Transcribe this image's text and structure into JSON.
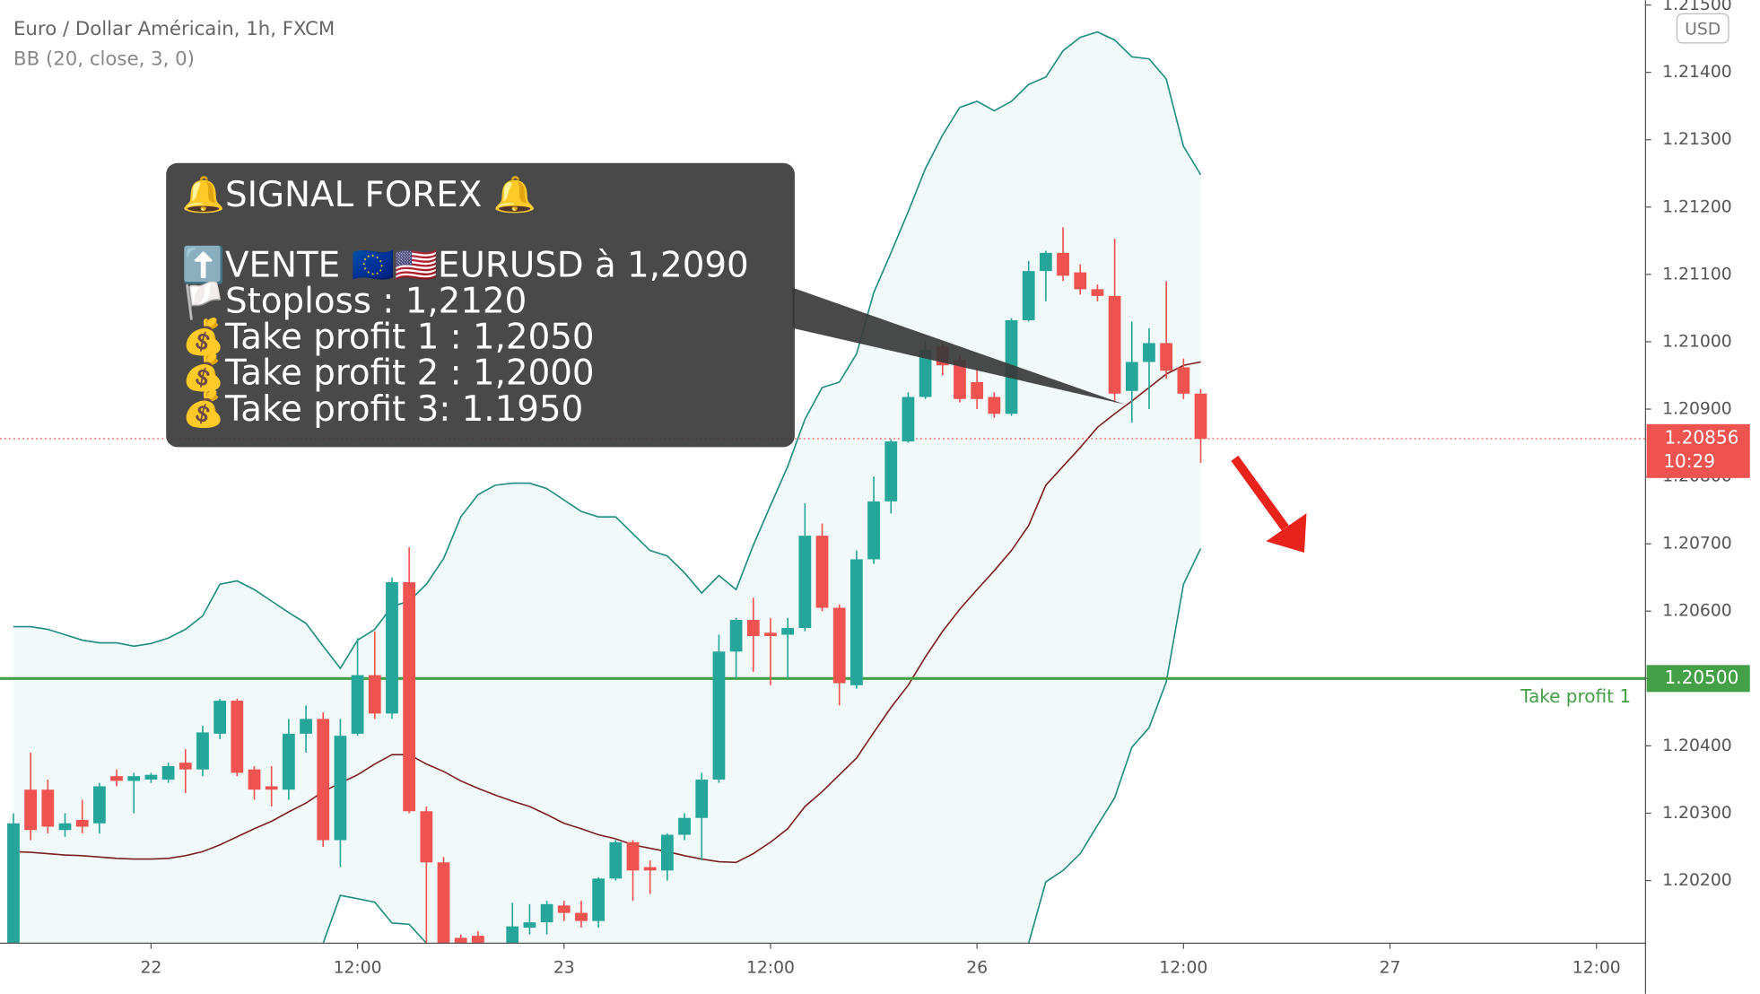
{
  "chart_data": {
    "type": "candlestick",
    "title": "Euro / Dollar Américain, 1h, FXCM",
    "currency": "USD",
    "up_color": "#26a69a",
    "down_color": "#ef5350",
    "xlim": [
      -0.78,
      94.85
    ],
    "xticks": [
      {
        "value": 8,
        "label": "22"
      },
      {
        "value": 20,
        "label": "12:00"
      },
      {
        "value": 32,
        "label": "23"
      },
      {
        "value": 44,
        "label": "12:00"
      },
      {
        "value": 56,
        "label": "26"
      },
      {
        "value": 68,
        "label": "12:00"
      },
      {
        "value": 80,
        "label": "27"
      },
      {
        "value": 92,
        "label": "12:00"
      }
    ],
    "ylim": [
      1.20107,
      1.21507
    ],
    "yticks": [
      {
        "value": 1.202,
        "label": "1.20200"
      },
      {
        "value": 1.203,
        "label": "1.20300"
      },
      {
        "value": 1.204,
        "label": "1.20400"
      },
      {
        "value": 1.205,
        "label": "1.20500"
      },
      {
        "value": 1.206,
        "label": "1.20600"
      },
      {
        "value": 1.207,
        "label": "1.20700"
      },
      {
        "value": 1.208,
        "label": "1.20800"
      },
      {
        "value": 1.209,
        "label": "1.20900"
      },
      {
        "value": 1.21,
        "label": "1.21000"
      },
      {
        "value": 1.211,
        "label": "1.21100"
      },
      {
        "value": 1.212,
        "label": "1.21200"
      },
      {
        "value": 1.213,
        "label": "1.21300"
      },
      {
        "value": 1.214,
        "label": "1.21400"
      },
      {
        "value": 1.215,
        "label": "1.21500"
      }
    ],
    "grid": false,
    "x": [
      0,
      1,
      2,
      3,
      4,
      5,
      6,
      7,
      8,
      9,
      10,
      11,
      12,
      13,
      14,
      15,
      16,
      17,
      18,
      19,
      20,
      21,
      22,
      23,
      24,
      25,
      26,
      27,
      28,
      29,
      30,
      31,
      32,
      33,
      34,
      35,
      36,
      37,
      38,
      39,
      40,
      41,
      42,
      43,
      44,
      45,
      46,
      47,
      48,
      49,
      50,
      51,
      52,
      53,
      54,
      55,
      56,
      57,
      58,
      59,
      60,
      61,
      62,
      63,
      64,
      65,
      66,
      67,
      68,
      69
    ],
    "open": [
      1.20107,
      1.20335,
      1.20335,
      1.20275,
      1.2029,
      1.20285,
      1.20355,
      1.20348,
      1.2035,
      1.2035,
      1.20375,
      1.20365,
      1.20418,
      1.20467,
      1.20365,
      1.2034,
      1.20335,
      1.20418,
      1.2044,
      1.2026,
      1.20418,
      1.20505,
      1.20448,
      1.20643,
      1.20303,
      1.20227,
      1.20115,
      1.20118,
      1.2009,
      1.20107,
      1.2013,
      1.20138,
      1.20163,
      1.20152,
      1.2014,
      1.20203,
      1.20257,
      1.2022,
      1.20215,
      1.20268,
      1.20293,
      1.2035,
      1.2054,
      1.20587,
      1.20568,
      1.20565,
      1.20575,
      1.20712,
      1.20605,
      1.2049,
      1.20677,
      1.20763,
      1.20852,
      1.20918,
      1.20993,
      1.20973,
      1.2094,
      1.20918,
      1.20893,
      1.21032,
      1.21105,
      1.21132,
      1.21103,
      1.21078,
      1.21068,
      1.20927,
      1.2097,
      1.20998,
      1.20962,
      1.20923
    ],
    "high": [
      1.203,
      1.2039,
      1.2035,
      1.203,
      1.2032,
      1.20345,
      1.20365,
      1.2036,
      1.2036,
      1.20375,
      1.20395,
      1.2043,
      1.2047,
      1.2047,
      1.2037,
      1.2037,
      1.2044,
      1.2046,
      1.2045,
      1.2044,
      1.2056,
      1.2057,
      1.2065,
      1.20695,
      1.2031,
      1.20235,
      1.2012,
      1.20125,
      1.20105,
      1.20167,
      1.20165,
      1.2017,
      1.2017,
      1.2017,
      1.20205,
      1.2026,
      1.2026,
      1.2023,
      1.2027,
      1.203,
      1.2036,
      1.20565,
      1.2059,
      1.2062,
      1.2059,
      1.2059,
      1.2076,
      1.2073,
      1.2061,
      1.2069,
      1.208,
      1.20855,
      1.20925,
      1.21,
      1.21,
      1.2098,
      1.2096,
      1.20925,
      1.21035,
      1.2112,
      1.21135,
      1.2117,
      1.21115,
      1.21085,
      1.21153,
      1.2103,
      1.2102,
      1.2109,
      1.20975,
      1.2093
    ],
    "low": [
      1.20107,
      1.2026,
      1.2027,
      1.20265,
      1.2027,
      1.2027,
      1.2034,
      1.203,
      1.20345,
      1.20345,
      1.2033,
      1.20355,
      1.2041,
      1.20355,
      1.2032,
      1.2031,
      1.2032,
      1.2039,
      1.2025,
      1.2022,
      1.20415,
      1.2044,
      1.2044,
      1.203,
      1.20107,
      1.20107,
      1.20107,
      1.2009,
      1.2008,
      1.201,
      1.2012,
      1.2012,
      1.2014,
      1.2013,
      1.2013,
      1.202,
      1.2017,
      1.2018,
      1.202,
      1.2026,
      1.2023,
      1.20345,
      1.205,
      1.2051,
      1.2049,
      1.205,
      1.2057,
      1.206,
      1.2046,
      1.20485,
      1.2067,
      1.20745,
      1.2085,
      1.20915,
      1.2095,
      1.2091,
      1.209,
      1.20887,
      1.2089,
      1.2103,
      1.2106,
      1.2109,
      1.2107,
      1.2106,
      1.2091,
      1.2088,
      1.209,
      1.20945,
      1.20915,
      1.2082
    ],
    "close": [
      1.20285,
      1.20275,
      1.2028,
      1.20285,
      1.2028,
      1.2034,
      1.20348,
      1.20355,
      1.20357,
      1.2037,
      1.20365,
      1.2042,
      1.20467,
      1.2036,
      1.20335,
      1.20335,
      1.20418,
      1.2044,
      1.2026,
      1.20415,
      1.20505,
      1.20448,
      1.20643,
      1.20303,
      1.20227,
      1.20107,
      1.20107,
      1.20107,
      1.201,
      1.20132,
      1.20138,
      1.20165,
      1.20152,
      1.2014,
      1.20203,
      1.20257,
      1.20215,
      1.20215,
      1.20268,
      1.20293,
      1.2035,
      1.2054,
      1.20587,
      1.20563,
      1.20563,
      1.20575,
      1.20712,
      1.20605,
      1.20493,
      1.20677,
      1.20763,
      1.20852,
      1.20918,
      1.20988,
      1.20965,
      1.20915,
      1.20915,
      1.20893,
      1.21032,
      1.21105,
      1.21132,
      1.21098,
      1.21078,
      1.21068,
      1.20923,
      1.2097,
      1.20998,
      1.20957,
      1.20923,
      1.20856
    ],
    "indicator": {
      "label": "BB (20, close, 3, 0)",
      "band_color": "#1e8c80",
      "basis_color": "#7b2020",
      "fill_color": "#26a69a",
      "upper": [
        1.20577,
        1.20577,
        1.20573,
        1.20565,
        1.20557,
        1.20553,
        1.20553,
        1.20548,
        1.20552,
        1.2056,
        1.20573,
        1.20593,
        1.2064,
        1.20645,
        1.20632,
        1.20615,
        1.20598,
        1.20582,
        1.20548,
        1.20515,
        1.20557,
        1.20573,
        1.20607,
        1.20615,
        1.2064,
        1.20678,
        1.2074,
        1.20773,
        1.20787,
        1.2079,
        1.2079,
        1.20782,
        1.20765,
        1.20748,
        1.2074,
        1.2074,
        1.20715,
        1.2069,
        1.20682,
        1.20657,
        1.20627,
        1.20653,
        1.20632,
        1.20698,
        1.20757,
        1.20815,
        1.20885,
        1.20932,
        1.2094,
        1.20982,
        1.21073,
        1.21132,
        1.21193,
        1.21257,
        1.21307,
        1.21348,
        1.21357,
        1.21343,
        1.21357,
        1.21382,
        1.21393,
        1.21432,
        1.21452,
        1.2146,
        1.21448,
        1.21423,
        1.2142,
        1.2139,
        1.2129,
        1.21248
      ],
      "basis": [
        1.20243,
        1.20242,
        1.2024,
        1.20238,
        1.20237,
        1.20235,
        1.20233,
        1.20232,
        1.20232,
        1.20233,
        1.20237,
        1.20243,
        1.20253,
        1.20265,
        1.20277,
        1.20288,
        1.20302,
        1.20315,
        1.20332,
        1.20345,
        1.20357,
        1.20373,
        1.20387,
        1.20387,
        1.20373,
        1.20362,
        1.20348,
        1.20337,
        1.20327,
        1.20318,
        1.2031,
        1.20298,
        1.20285,
        1.20277,
        1.20268,
        1.20262,
        1.20253,
        1.20248,
        1.20243,
        1.20237,
        1.20232,
        1.20228,
        1.20227,
        1.2024,
        1.20257,
        1.20277,
        1.2031,
        1.20332,
        1.20357,
        1.20382,
        1.2042,
        1.20457,
        1.2049,
        1.20532,
        1.2057,
        1.20603,
        1.20632,
        1.2066,
        1.2069,
        1.20727,
        1.20787,
        1.20815,
        1.20843,
        1.20873,
        1.20893,
        1.20912,
        1.20932,
        1.20952,
        1.20965,
        1.2097
      ],
      "lower": [
        null,
        null,
        null,
        null,
        null,
        null,
        null,
        null,
        null,
        null,
        null,
        null,
        null,
        null,
        null,
        null,
        null,
        null,
        1.20107,
        1.20178,
        1.20173,
        1.20168,
        1.20137,
        1.20135,
        1.20107,
        null,
        null,
        null,
        null,
        null,
        null,
        null,
        null,
        null,
        null,
        null,
        null,
        null,
        null,
        null,
        null,
        null,
        null,
        null,
        null,
        null,
        null,
        null,
        null,
        null,
        null,
        null,
        null,
        null,
        null,
        null,
        null,
        null,
        null,
        1.20107,
        1.20198,
        1.20215,
        1.2024,
        1.20282,
        1.20323,
        1.20398,
        1.20427,
        1.20495,
        1.2064,
        1.20693
      ]
    },
    "hlines": [
      {
        "value": 1.205,
        "label": "1.20500",
        "name": "Take profit 1",
        "color": "#43a047"
      }
    ],
    "last_price": {
      "value": 1.20856,
      "label": "1.20856",
      "countdown": "10:29",
      "color": "#ef5350"
    },
    "annotation": {
      "lines": [
        "🔔SIGNAL FOREX 🔔",
        "⬆️VENTE  🇪🇺🇺🇸EURUSD à 1,2090",
        "🏳️Stoploss : 1,2120",
        "💰Take profit 1 : 1,2050",
        "💰Take profit 2 : 1,2000",
        "💰Take profit 3: 1.1950"
      ]
    }
  }
}
